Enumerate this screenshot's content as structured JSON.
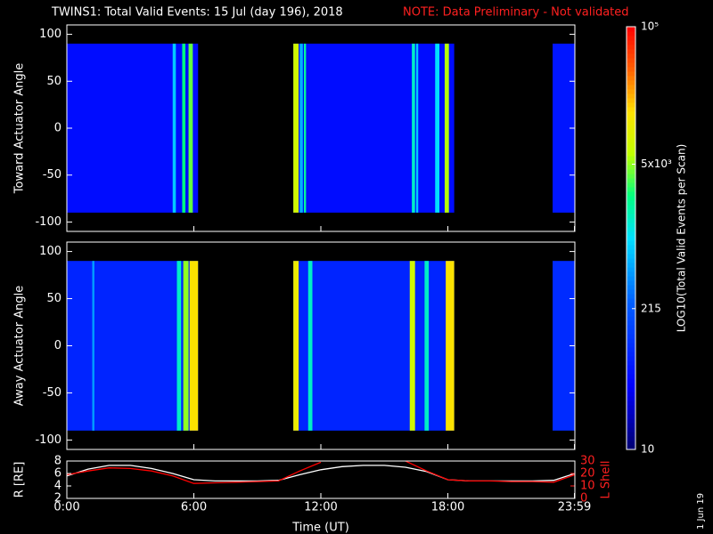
{
  "title": "TWINS1: Total Valid Events: 15 Jul (day 196), 2018",
  "note": "NOTE: Data Preliminary - Not validated",
  "side_date": "1 Jun 19",
  "colorbar": {
    "label": "LOG10(Total Valid Events per Scan)",
    "lim": [
      10,
      100000
    ],
    "log": true,
    "ticks": [
      10,
      215,
      {
        "value": 5000,
        "label": "5x10³"
      },
      {
        "value": 100000,
        "label": "10⁵"
      }
    ]
  },
  "chart_data": [
    {
      "type": "heatmap",
      "y_label": "Toward Actuator Angle",
      "ylim": [
        -110,
        110
      ],
      "yticks": [
        -100,
        -50,
        0,
        50,
        100
      ],
      "xlim": [
        0,
        24
      ],
      "angle_range": [
        -90,
        90
      ],
      "blocks": [
        {
          "x": [
            0,
            6.2
          ],
          "value": 50
        },
        {
          "x": [
            10.7,
            18.3
          ],
          "value": 50
        },
        {
          "x": [
            22.95,
            24
          ],
          "value": 60
        }
      ],
      "stripes": [
        {
          "x": [
            5.0,
            5.15
          ],
          "value": 800
        },
        {
          "x": [
            5.45,
            5.6
          ],
          "value": 2500
        },
        {
          "x": [
            5.75,
            5.95
          ],
          "value": 4000
        },
        {
          "x": [
            10.7,
            10.95
          ],
          "value": 8000
        },
        {
          "x": [
            11.0,
            11.15
          ],
          "value": 600
        },
        {
          "x": [
            11.2,
            11.3
          ],
          "value": 2000
        },
        {
          "x": [
            16.3,
            16.45
          ],
          "value": 1500
        },
        {
          "x": [
            16.5,
            16.6
          ],
          "value": 800
        },
        {
          "x": [
            17.4,
            17.6
          ],
          "value": 1000
        },
        {
          "x": [
            17.85,
            18.05
          ],
          "value": 6000
        }
      ]
    },
    {
      "type": "heatmap",
      "y_label": "Away Actuator Angle",
      "ylim": [
        -110,
        110
      ],
      "yticks": [
        -100,
        -50,
        0,
        50,
        100
      ],
      "xlim": [
        0,
        24
      ],
      "angle_range": [
        -90,
        90
      ],
      "blocks": [
        {
          "x": [
            0,
            6.2
          ],
          "value": 80
        },
        {
          "x": [
            10.7,
            18.3
          ],
          "value": 80
        },
        {
          "x": [
            22.95,
            24
          ],
          "value": 90
        }
      ],
      "stripes": [
        {
          "x": [
            1.2,
            1.3
          ],
          "value": 500
        },
        {
          "x": [
            5.2,
            5.4
          ],
          "value": 1500
        },
        {
          "x": [
            5.5,
            5.75
          ],
          "value": 5000
        },
        {
          "x": [
            5.8,
            6.2
          ],
          "value": 15000
        },
        {
          "x": [
            10.7,
            10.95
          ],
          "value": 12000
        },
        {
          "x": [
            11.4,
            11.6
          ],
          "value": 1500
        },
        {
          "x": [
            16.2,
            16.45
          ],
          "value": 8000
        },
        {
          "x": [
            16.9,
            17.1
          ],
          "value": 1500
        },
        {
          "x": [
            17.9,
            18.3
          ],
          "value": 15000
        }
      ]
    },
    {
      "type": "line",
      "x_label": "Time (UT)",
      "y_label": "R [RE]",
      "y2_label": "L Shell",
      "xlim": [
        0,
        24
      ],
      "xticks": [
        {
          "value": 0,
          "label": "0:00"
        },
        {
          "value": 6,
          "label": "6:00"
        },
        {
          "value": 12,
          "label": "12:00"
        },
        {
          "value": 18,
          "label": "18:00"
        },
        {
          "value": 23.98,
          "label": "23:59"
        }
      ],
      "ylim": [
        2,
        8
      ],
      "yticks": [
        2,
        4,
        6,
        8
      ],
      "y2lim": [
        0,
        30
      ],
      "y2ticks": [
        0,
        10,
        20,
        30
      ],
      "x": [
        0,
        1,
        2,
        3,
        4,
        5,
        6,
        7,
        8,
        9,
        10,
        11,
        12,
        13,
        14,
        15,
        16,
        17,
        18,
        19,
        20,
        21,
        22,
        23,
        24
      ],
      "series": [
        {
          "color": "#ffffff",
          "values": [
            5.6,
            6.7,
            7.3,
            7.3,
            6.8,
            6.0,
            5.0,
            4.8,
            4.8,
            4.8,
            4.9,
            5.8,
            6.6,
            7.1,
            7.3,
            7.3,
            7.0,
            6.3,
            5.0,
            4.8,
            4.8,
            4.8,
            4.8,
            4.9,
            6.0
          ]
        },
        {
          "color": "#ff0000",
          "axis": "y2",
          "values": [
            19,
            22,
            24.5,
            24,
            22,
            18,
            12,
            12.5,
            13,
            13.5,
            14,
            22,
            29,
            null,
            null,
            null,
            30,
            22,
            15,
            14,
            14,
            13.5,
            13.5,
            13,
            19
          ]
        }
      ]
    }
  ]
}
